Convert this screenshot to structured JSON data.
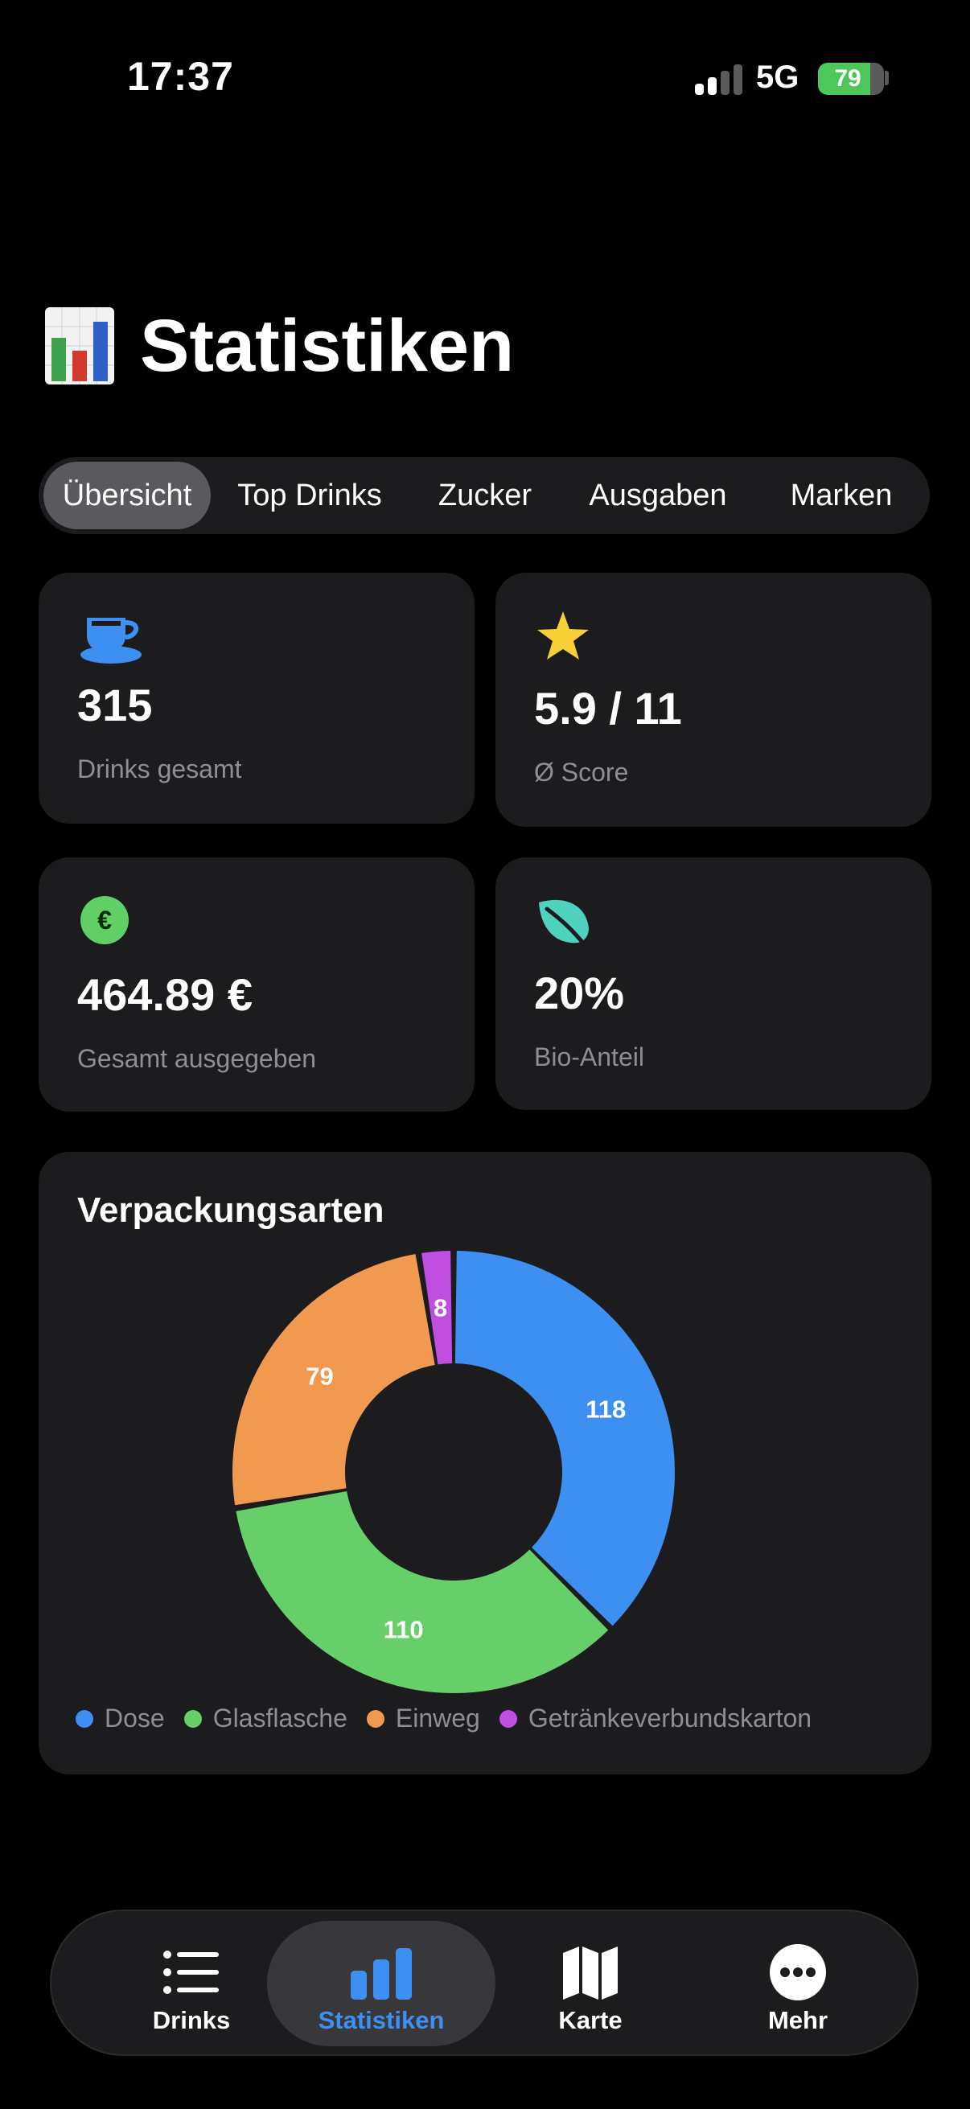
{
  "status_bar": {
    "time": "17:37",
    "network": "5G",
    "battery": "79",
    "battery_level": 0.79,
    "signal_bars": 2
  },
  "page": {
    "title_icon": "bar-chart-emoji-icon",
    "title": "Statistiken"
  },
  "segments": {
    "items": [
      "Übersicht",
      "Top Drinks",
      "Zucker",
      "Ausgaben",
      "Marken"
    ],
    "selected": "Übersicht"
  },
  "stats": [
    {
      "icon": "cup-icon",
      "icon_color": "#3d8ff2",
      "value": "315",
      "label": "Drinks gesamt"
    },
    {
      "icon": "star-icon",
      "icon_color": "#f7cf37",
      "value": "5.9 / 11",
      "label": "Ø Score"
    },
    {
      "icon": "euro-icon",
      "icon_color": "#5fcf66",
      "icon_symbol": "€",
      "value": "464.89 €",
      "label": "Gesamt ausgegeben"
    },
    {
      "icon": "leaf-icon",
      "icon_color": "#4fd1c0",
      "value": "20%",
      "label": "Bio-Anteil"
    }
  ],
  "chart_data": {
    "type": "pie",
    "style": "donut",
    "title": "Verpackungsarten",
    "categories": [
      "Dose",
      "Glasflasche",
      "Einweg",
      "Getränkeverbundskarton"
    ],
    "values": [
      118,
      110,
      79,
      8
    ],
    "colors": [
      "#3d8ff2",
      "#66cf6a",
      "#f0994f",
      "#c04ee0"
    ],
    "legend": "bottom"
  },
  "tabbar": {
    "items": [
      {
        "icon": "list-icon",
        "label": "Drinks"
      },
      {
        "icon": "bar-chart-icon",
        "label": "Statistiken"
      },
      {
        "icon": "map-icon",
        "label": "Karte"
      },
      {
        "icon": "more-icon",
        "label": "Mehr"
      }
    ],
    "selected": "Statistiken"
  }
}
